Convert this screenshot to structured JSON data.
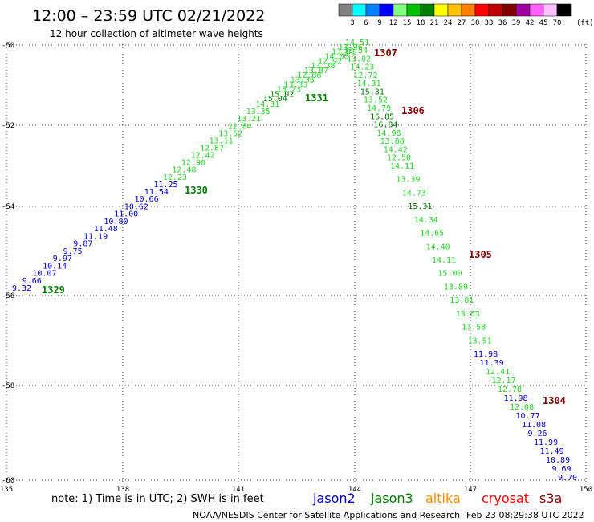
{
  "header": {
    "title": "12:00 – 23:59 UTC 02/21/2022",
    "subtitle": "12 hour collection of altimeter wave heights"
  },
  "legend": {
    "unit_label": "(ft)",
    "bins": [
      {
        "label": "3",
        "color": "#808080"
      },
      {
        "label": "6",
        "color": "#00ffff"
      },
      {
        "label": "9",
        "color": "#0080ff"
      },
      {
        "label": "12",
        "color": "#0000ff"
      },
      {
        "label": "15",
        "color": "#80ff80"
      },
      {
        "label": "18",
        "color": "#00c000"
      },
      {
        "label": "21",
        "color": "#008000"
      },
      {
        "label": "24",
        "color": "#ffff00"
      },
      {
        "label": "27",
        "color": "#ffc000"
      },
      {
        "label": "30",
        "color": "#ff8000"
      },
      {
        "label": "33",
        "color": "#ff0000"
      },
      {
        "label": "36",
        "color": "#c00000"
      },
      {
        "label": "39",
        "color": "#800000"
      },
      {
        "label": "42",
        "color": "#a000a0"
      },
      {
        "label": "45",
        "color": "#ff60ff"
      },
      {
        "label": "70",
        "color": "#ffc0ff"
      },
      {
        "label": "",
        "color": "#000000"
      }
    ]
  },
  "axes": {
    "lat_ticks": [
      "-50",
      "-52",
      "-54",
      "-56",
      "-58",
      "-60"
    ],
    "lon_ticks": [
      "135",
      "138",
      "141",
      "144",
      "147",
      "150"
    ],
    "grid": "dotted"
  },
  "colors": {
    "jason2": "#0000c8",
    "jason3": "#28d228",
    "jason3_dark": "#007800",
    "altika": "#ff8c00",
    "cryosat": "#ff0000",
    "s3a": "#8c0000",
    "time_label": "#008000",
    "time_label_dark": "#800000"
  },
  "tracks": [
    {
      "id": "A",
      "observations": [
        {
          "text": "9.32",
          "color": "#0000c8"
        },
        {
          "text": "9.66",
          "color": "#0000c8"
        },
        {
          "text": "10.07",
          "color": "#0000c8"
        },
        {
          "text": "10.14",
          "color": "#0000c8"
        },
        {
          "text": "9.97",
          "color": "#0000c8"
        },
        {
          "text": "9.75",
          "color": "#0000c8"
        },
        {
          "text": "9.87",
          "color": "#0000c8"
        },
        {
          "text": "11.19",
          "color": "#0000c8"
        },
        {
          "text": "11.48",
          "color": "#0000c8"
        },
        {
          "text": "10.80",
          "color": "#0000c8"
        },
        {
          "text": "11.00",
          "color": "#0000c8"
        },
        {
          "text": "10.62",
          "color": "#0000c8"
        },
        {
          "text": "10.66",
          "color": "#0000c8"
        },
        {
          "text": "11.54",
          "color": "#0000c8"
        },
        {
          "text": "11.25",
          "color": "#0000c8"
        },
        {
          "text": "12.23",
          "color": "#28d228"
        },
        {
          "text": "12.48",
          "color": "#28d228"
        },
        {
          "text": "12.90",
          "color": "#28d228"
        },
        {
          "text": "12.42",
          "color": "#28d228"
        },
        {
          "text": "12.87",
          "color": "#28d228"
        },
        {
          "text": "13.11",
          "color": "#28d228"
        },
        {
          "text": "13.52",
          "color": "#28d228"
        },
        {
          "text": "12.84",
          "color": "#28d228"
        },
        {
          "text": "13.21",
          "color": "#28d228"
        },
        {
          "text": "13.35",
          "color": "#28d228"
        },
        {
          "text": "14.31",
          "color": "#28d228"
        },
        {
          "text": "15.04",
          "color": "#007800"
        },
        {
          "text": "15.02",
          "color": "#007800"
        },
        {
          "text": "13.73",
          "color": "#28d228"
        },
        {
          "text": "13.33",
          "color": "#28d228"
        },
        {
          "text": "13.35",
          "color": "#28d228"
        },
        {
          "text": "12.88",
          "color": "#28d228"
        },
        {
          "text": "13.87",
          "color": "#28d228"
        },
        {
          "text": "13.38",
          "color": "#28d228"
        },
        {
          "text": "12.92",
          "color": "#28d228"
        },
        {
          "text": "14.06",
          "color": "#28d228"
        },
        {
          "text": "13.81",
          "color": "#28d228"
        },
        {
          "text": "13.96",
          "color": "#28d228"
        },
        {
          "text": "14.51",
          "color": "#28d228"
        }
      ]
    },
    {
      "id": "B",
      "observations": [
        {
          "text": "13.54",
          "color": "#28d228"
        },
        {
          "text": "13.02",
          "color": "#28d228"
        },
        {
          "text": "14.23",
          "color": "#28d228"
        },
        {
          "text": "12.72",
          "color": "#28d228"
        },
        {
          "text": "14.31",
          "color": "#28d228"
        },
        {
          "text": "15.31",
          "color": "#007800"
        },
        {
          "text": "13.52",
          "color": "#28d228"
        },
        {
          "text": "14.79",
          "color": "#28d228"
        },
        {
          "text": "16.85",
          "color": "#007800"
        },
        {
          "text": "16.84",
          "color": "#007800"
        },
        {
          "text": "14.98",
          "color": "#28d228"
        },
        {
          "text": "13.88",
          "color": "#28d228"
        },
        {
          "text": "14.42",
          "color": "#28d228"
        },
        {
          "text": "12.50",
          "color": "#28d228"
        },
        {
          "text": "14.11",
          "color": "#28d228"
        },
        {
          "text": "13.39",
          "color": "#28d228"
        },
        {
          "text": "14.73",
          "color": "#28d228"
        },
        {
          "text": "15.31",
          "color": "#007800"
        },
        {
          "text": "14.34",
          "color": "#28d228"
        },
        {
          "text": "14.65",
          "color": "#28d228"
        },
        {
          "text": "14.40",
          "color": "#28d228"
        },
        {
          "text": "14.11",
          "color": "#28d228"
        },
        {
          "text": "15.00",
          "color": "#28d228"
        },
        {
          "text": "13.89",
          "color": "#28d228"
        },
        {
          "text": "13.81",
          "color": "#28d228"
        },
        {
          "text": "13.63",
          "color": "#28d228"
        },
        {
          "text": "13.58",
          "color": "#28d228"
        },
        {
          "text": "13.51",
          "color": "#28d228"
        },
        {
          "text": "11.98",
          "color": "#0000c8"
        },
        {
          "text": "11.39",
          "color": "#0000c8"
        },
        {
          "text": "12.41",
          "color": "#28d228"
        },
        {
          "text": "12.17",
          "color": "#28d228"
        },
        {
          "text": "12.78",
          "color": "#28d228"
        },
        {
          "text": "11.98",
          "color": "#0000c8"
        },
        {
          "text": "12.08",
          "color": "#28d228"
        },
        {
          "text": "10.77",
          "color": "#0000c8"
        },
        {
          "text": "11.08",
          "color": "#0000c8"
        },
        {
          "text": "9.26",
          "color": "#0000c8"
        },
        {
          "text": "11.99",
          "color": "#0000c8"
        },
        {
          "text": "11.49",
          "color": "#0000c8"
        },
        {
          "text": "10.89",
          "color": "#0000c8"
        },
        {
          "text": "9.69",
          "color": "#0000c8"
        },
        {
          "text": "9.70",
          "color": "#0000c8"
        }
      ]
    }
  ],
  "time_labels": [
    {
      "text": "1329",
      "color": "#008000"
    },
    {
      "text": "1330",
      "color": "#008000"
    },
    {
      "text": "1331",
      "color": "#008000"
    },
    {
      "text": "1307",
      "color": "#800000"
    },
    {
      "text": "1306",
      "color": "#800000"
    },
    {
      "text": "1305",
      "color": "#800000"
    },
    {
      "text": "1304",
      "color": "#800000"
    }
  ],
  "footer": {
    "note": "note: 1) Time is in UTC; 2) SWH is in feet",
    "satellites": [
      {
        "name": "jason2",
        "color": "#0000c8"
      },
      {
        "name": "jason3",
        "color": "#008000"
      },
      {
        "name": "altika",
        "color": "#ff8c00"
      },
      {
        "name": "cryosat",
        "color": "#ff0000"
      },
      {
        "name": "s3a",
        "color": "#8c0000"
      }
    ],
    "credit": "NOAA/NESDIS Center for Satellite Applications and Research",
    "timestamp": "Feb 23 08:29:38 UTC 2022"
  }
}
